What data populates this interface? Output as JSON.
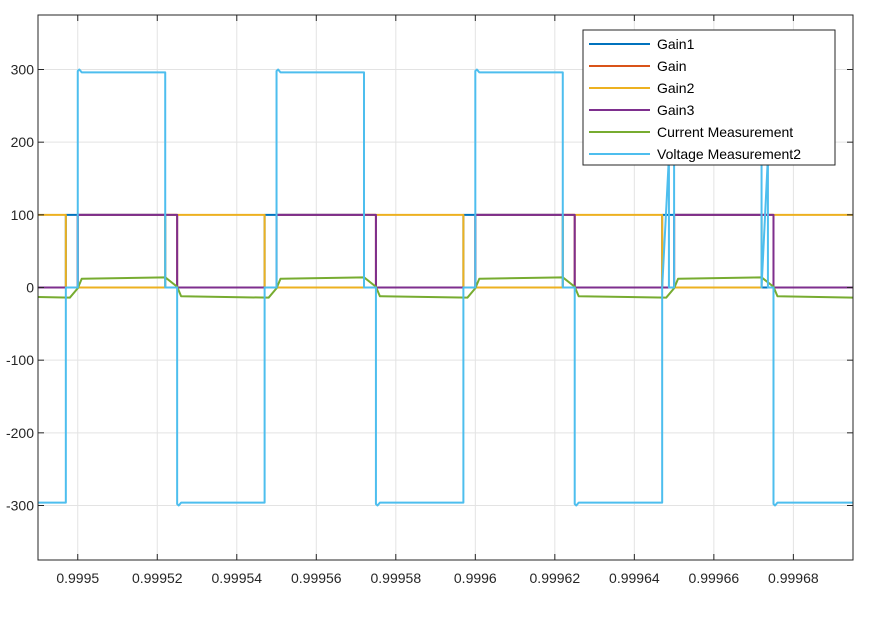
{
  "chart_data": {
    "type": "line",
    "xlim": [
      0.99949,
      0.999695
    ],
    "ylim": [
      -375,
      375
    ],
    "x_ticks": [
      0.9995,
      0.99952,
      0.99954,
      0.99956,
      0.99958,
      0.9996,
      0.99962,
      0.99964,
      0.99966,
      0.99968
    ],
    "x_tick_labels": [
      "0.9995",
      "0.99952",
      "0.99954",
      "0.99956",
      "0.99958",
      "0.9996",
      "0.99962",
      "0.99964",
      "0.99966",
      "0.99968"
    ],
    "y_ticks": [
      -300,
      -200,
      -100,
      0,
      100,
      200,
      300
    ],
    "y_tick_labels": [
      "-300",
      "-200",
      "-100",
      "0",
      "100",
      "200",
      "300"
    ],
    "grid": true,
    "legend_position": "top-right",
    "series": [
      {
        "name": "Gain1",
        "color": "#0072BD",
        "x": [
          0.99949,
          0.999497,
          0.999497,
          0.9995,
          0.9995,
          0.999522,
          0.999522,
          0.999525,
          0.999525,
          0.999547,
          0.999547,
          0.99955,
          0.99955,
          0.999572,
          0.999572,
          0.999575,
          0.999575,
          0.999597,
          0.999597,
          0.9996,
          0.9996,
          0.999622,
          0.999622,
          0.999625,
          0.999625,
          0.999647,
          0.999647,
          0.99965,
          0.99965,
          0.999672,
          0.999672,
          0.999675,
          0.999675,
          0.999695
        ],
        "y": [
          0,
          0,
          100,
          100,
          100,
          100,
          0,
          0,
          0,
          0,
          100,
          100,
          100,
          100,
          0,
          0,
          0,
          0,
          100,
          100,
          100,
          100,
          0,
          0,
          0,
          0,
          100,
          100,
          100,
          100,
          0,
          0,
          0,
          0
        ]
      },
      {
        "name": "Gain",
        "color": "#D95319",
        "x": [
          0.99949,
          0.9995,
          0.9995,
          0.999525,
          0.999525,
          0.99955,
          0.99955,
          0.999575,
          0.999575,
          0.9996,
          0.9996,
          0.999625,
          0.999625,
          0.99965,
          0.99965,
          0.999675,
          0.999675,
          0.999695
        ],
        "y": [
          0,
          0,
          100,
          100,
          0,
          0,
          100,
          100,
          0,
          0,
          100,
          100,
          0,
          0,
          100,
          100,
          0,
          0
        ]
      },
      {
        "name": "Gain2",
        "color": "#EDB120",
        "x": [
          0.99949,
          0.999497,
          0.999497,
          0.9995,
          0.9995,
          0.999522,
          0.999522,
          0.999525,
          0.999525,
          0.999547,
          0.999547,
          0.99955,
          0.99955,
          0.999572,
          0.999572,
          0.999575,
          0.999575,
          0.999597,
          0.999597,
          0.9996,
          0.9996,
          0.999622,
          0.999622,
          0.999625,
          0.999625,
          0.999647,
          0.999647,
          0.99965,
          0.99965,
          0.999672,
          0.999672,
          0.999675,
          0.999675,
          0.999695
        ],
        "y": [
          100,
          100,
          0,
          0,
          0,
          0,
          100,
          100,
          100,
          100,
          0,
          0,
          0,
          0,
          100,
          100,
          100,
          100,
          0,
          0,
          0,
          0,
          100,
          100,
          100,
          100,
          0,
          0,
          0,
          0,
          100,
          100,
          100,
          100
        ]
      },
      {
        "name": "Gain3",
        "color": "#7E2F8E",
        "x": [
          0.99949,
          0.9995,
          0.9995,
          0.999525,
          0.999525,
          0.99955,
          0.99955,
          0.999575,
          0.999575,
          0.9996,
          0.9996,
          0.999625,
          0.999625,
          0.99965,
          0.99965,
          0.999675,
          0.999675,
          0.999695
        ],
        "y": [
          0,
          0,
          100,
          100,
          0,
          0,
          100,
          100,
          0,
          0,
          100,
          100,
          0,
          0,
          100,
          100,
          0,
          0
        ]
      },
      {
        "name": "Current Measurement",
        "color": "#77AC30",
        "x": [
          0.99949,
          0.999498,
          0.9995,
          0.999501,
          0.999522,
          0.999525,
          0.999526,
          0.999548,
          0.99955,
          0.999551,
          0.999572,
          0.999575,
          0.999576,
          0.999598,
          0.9996,
          0.999601,
          0.999622,
          0.999625,
          0.999626,
          0.999648,
          0.99965,
          0.999651,
          0.999672,
          0.999675,
          0.999676,
          0.999695
        ],
        "y": [
          -13,
          -14,
          -1,
          12,
          14,
          1,
          -12,
          -14,
          -1,
          12,
          14,
          1,
          -12,
          -14,
          -1,
          12,
          14,
          1,
          -12,
          -14,
          -1,
          12,
          14,
          1,
          -12,
          -14
        ]
      },
      {
        "name": "Voltage Measurement2",
        "color": "#4DBEEE",
        "x": [
          0.99949,
          0.999497,
          0.999497,
          0.9995,
          0.9995,
          0.9995004,
          0.999501,
          0.999522,
          0.999522,
          0.999525,
          0.999525,
          0.9995254,
          0.999526,
          0.999547,
          0.999547,
          0.99955,
          0.99955,
          0.9995504,
          0.999551,
          0.999572,
          0.999572,
          0.999575,
          0.999575,
          0.9995754,
          0.999576,
          0.999597,
          0.999597,
          0.9996,
          0.9996,
          0.9996004,
          0.999601,
          0.999622,
          0.999622,
          0.999625,
          0.999625,
          0.9996254,
          0.999626,
          0.999647,
          0.999647,
          0.9996487,
          0.9996487,
          0.99965,
          0.99965,
          0.999672,
          0.999672,
          0.9996736,
          0.9996736,
          0.999675,
          0.999675,
          0.9996754,
          0.999676,
          0.999695
        ],
        "y": [
          -296,
          -296,
          0,
          0,
          298,
          300,
          296,
          296,
          0,
          0,
          -298,
          -300,
          -296,
          -296,
          0,
          0,
          298,
          300,
          296,
          296,
          0,
          0,
          -298,
          -300,
          -296,
          -296,
          0,
          0,
          298,
          300,
          296,
          296,
          0,
          0,
          -298,
          -300,
          -296,
          -296,
          0,
          180,
          0,
          0,
          298,
          296,
          0,
          180,
          0,
          0,
          -298,
          -300,
          -296,
          -296
        ]
      }
    ]
  }
}
